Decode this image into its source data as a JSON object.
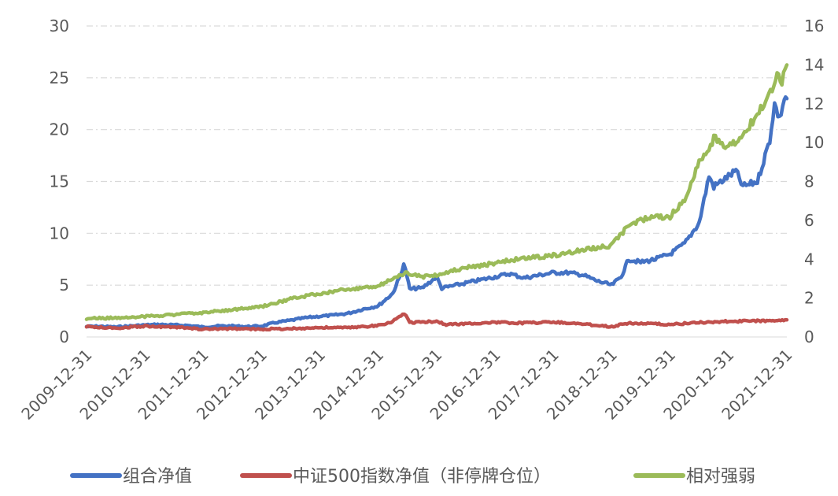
{
  "chart_data": {
    "type": "line",
    "title": "",
    "xlabel": "",
    "ylabel": "",
    "grid": true,
    "legend_position": "bottom",
    "x_ticks": [
      "2009-12-31",
      "2010-12-31",
      "2011-12-31",
      "2012-12-31",
      "2013-12-31",
      "2014-12-31",
      "2015-12-31",
      "2016-12-31",
      "2017-12-31",
      "2018-12-31",
      "2019-12-31",
      "2020-12-31",
      "2021-12-31"
    ],
    "y_left": {
      "lim": [
        0,
        30
      ],
      "ticks": [
        "0",
        "5",
        "10",
        "15",
        "20",
        "25",
        "30"
      ]
    },
    "y_right": {
      "lim": [
        0,
        16
      ],
      "ticks": [
        "0",
        "2",
        "4",
        "6",
        "8",
        "10",
        "12",
        "14",
        "16"
      ]
    },
    "series": [
      {
        "name": "组合净值",
        "axis": "left",
        "color": "#4472c4",
        "points": [
          [
            "2009-12-31",
            1.0
          ],
          [
            "2010-03-31",
            1.02
          ],
          [
            "2010-06-30",
            0.95
          ],
          [
            "2010-09-30",
            1.05
          ],
          [
            "2010-12-31",
            1.15
          ],
          [
            "2011-03-31",
            1.2
          ],
          [
            "2011-06-30",
            1.15
          ],
          [
            "2011-09-30",
            1.1
          ],
          [
            "2011-12-31",
            0.95
          ],
          [
            "2012-03-31",
            1.05
          ],
          [
            "2012-06-30",
            1.05
          ],
          [
            "2012-09-30",
            1.0
          ],
          [
            "2012-12-31",
            1.05
          ],
          [
            "2013-03-31",
            1.4
          ],
          [
            "2013-06-30",
            1.6
          ],
          [
            "2013-09-30",
            1.85
          ],
          [
            "2013-12-31",
            2.0
          ],
          [
            "2014-03-31",
            2.1
          ],
          [
            "2014-06-30",
            2.3
          ],
          [
            "2014-09-30",
            2.7
          ],
          [
            "2014-12-31",
            3.0
          ],
          [
            "2015-03-31",
            4.2
          ],
          [
            "2015-05-20",
            6.0
          ],
          [
            "2015-06-08",
            7.1
          ],
          [
            "2015-06-30",
            5.8
          ],
          [
            "2015-07-15",
            4.6
          ],
          [
            "2015-08-31",
            4.7
          ],
          [
            "2015-09-30",
            4.7
          ],
          [
            "2015-12-31",
            5.8
          ],
          [
            "2016-02-01",
            4.7
          ],
          [
            "2016-06-30",
            5.2
          ],
          [
            "2016-12-31",
            5.8
          ],
          [
            "2017-03-31",
            6.1
          ],
          [
            "2017-06-30",
            5.7
          ],
          [
            "2017-12-31",
            6.2
          ],
          [
            "2018-03-31",
            6.2
          ],
          [
            "2018-06-30",
            6.0
          ],
          [
            "2018-09-30",
            5.4
          ],
          [
            "2018-12-31",
            5.0
          ],
          [
            "2019-02-28",
            5.8
          ],
          [
            "2019-04-15",
            7.5
          ],
          [
            "2019-06-30",
            7.2
          ],
          [
            "2019-09-30",
            7.5
          ],
          [
            "2019-12-31",
            8.0
          ],
          [
            "2020-03-31",
            9.0
          ],
          [
            "2020-06-30",
            11.0
          ],
          [
            "2020-08-31",
            15.5
          ],
          [
            "2020-09-30",
            14.5
          ],
          [
            "2020-12-31",
            15.5
          ],
          [
            "2021-02-15",
            16.0
          ],
          [
            "2021-03-31",
            14.5
          ],
          [
            "2021-06-30",
            15.0
          ],
          [
            "2021-09-15",
            19.0
          ],
          [
            "2021-10-15",
            22.5
          ],
          [
            "2021-11-15",
            21.0
          ],
          [
            "2021-12-15",
            23.0
          ],
          [
            "2021-12-31",
            23.0
          ]
        ]
      },
      {
        "name": "中证500指数净值（非停牌仓位）",
        "axis": "left",
        "color": "#c0504d",
        "points": [
          [
            "2009-12-31",
            1.0
          ],
          [
            "2010-06-30",
            0.85
          ],
          [
            "2010-12-31",
            1.05
          ],
          [
            "2011-06-30",
            0.95
          ],
          [
            "2011-12-31",
            0.75
          ],
          [
            "2012-06-30",
            0.8
          ],
          [
            "2012-12-31",
            0.75
          ],
          [
            "2013-06-30",
            0.8
          ],
          [
            "2013-12-31",
            0.9
          ],
          [
            "2014-06-30",
            0.9
          ],
          [
            "2014-12-31",
            1.1
          ],
          [
            "2015-03-31",
            1.5
          ],
          [
            "2015-06-12",
            2.3
          ],
          [
            "2015-07-15",
            1.4
          ],
          [
            "2015-12-31",
            1.5
          ],
          [
            "2016-02-29",
            1.2
          ],
          [
            "2016-12-31",
            1.4
          ],
          [
            "2017-06-30",
            1.35
          ],
          [
            "2017-12-31",
            1.45
          ],
          [
            "2018-06-30",
            1.25
          ],
          [
            "2018-12-31",
            1.0
          ],
          [
            "2019-04-15",
            1.35
          ],
          [
            "2019-12-31",
            1.2
          ],
          [
            "2020-06-30",
            1.4
          ],
          [
            "2020-12-31",
            1.5
          ],
          [
            "2021-06-30",
            1.55
          ],
          [
            "2021-12-31",
            1.65
          ]
        ]
      },
      {
        "name": "相对强弱",
        "axis": "right",
        "color": "#9bbb59",
        "points": [
          [
            "2009-12-31",
            0.95
          ],
          [
            "2010-06-30",
            0.98
          ],
          [
            "2010-12-31",
            1.05
          ],
          [
            "2011-06-30",
            1.15
          ],
          [
            "2011-12-31",
            1.25
          ],
          [
            "2012-06-30",
            1.4
          ],
          [
            "2012-12-31",
            1.55
          ],
          [
            "2013-06-30",
            1.95
          ],
          [
            "2013-12-31",
            2.25
          ],
          [
            "2014-06-30",
            2.45
          ],
          [
            "2014-12-31",
            2.65
          ],
          [
            "2015-06-30",
            3.3
          ],
          [
            "2015-09-30",
            3.1
          ],
          [
            "2015-12-31",
            3.2
          ],
          [
            "2016-06-30",
            3.55
          ],
          [
            "2016-12-31",
            3.8
          ],
          [
            "2017-06-30",
            4.05
          ],
          [
            "2017-12-31",
            4.2
          ],
          [
            "2018-06-30",
            4.45
          ],
          [
            "2018-12-31",
            4.7
          ],
          [
            "2019-03-31",
            5.6
          ],
          [
            "2019-06-30",
            6.05
          ],
          [
            "2019-12-31",
            6.2
          ],
          [
            "2020-03-31",
            7.0
          ],
          [
            "2020-06-30",
            9.0
          ],
          [
            "2020-09-30",
            10.2
          ],
          [
            "2020-12-31",
            9.8
          ],
          [
            "2021-03-31",
            10.4
          ],
          [
            "2021-06-30",
            11.5
          ],
          [
            "2021-09-30",
            12.8
          ],
          [
            "2021-10-31",
            13.4
          ],
          [
            "2021-11-30",
            13.2
          ],
          [
            "2021-12-31",
            14.0
          ]
        ]
      }
    ]
  }
}
